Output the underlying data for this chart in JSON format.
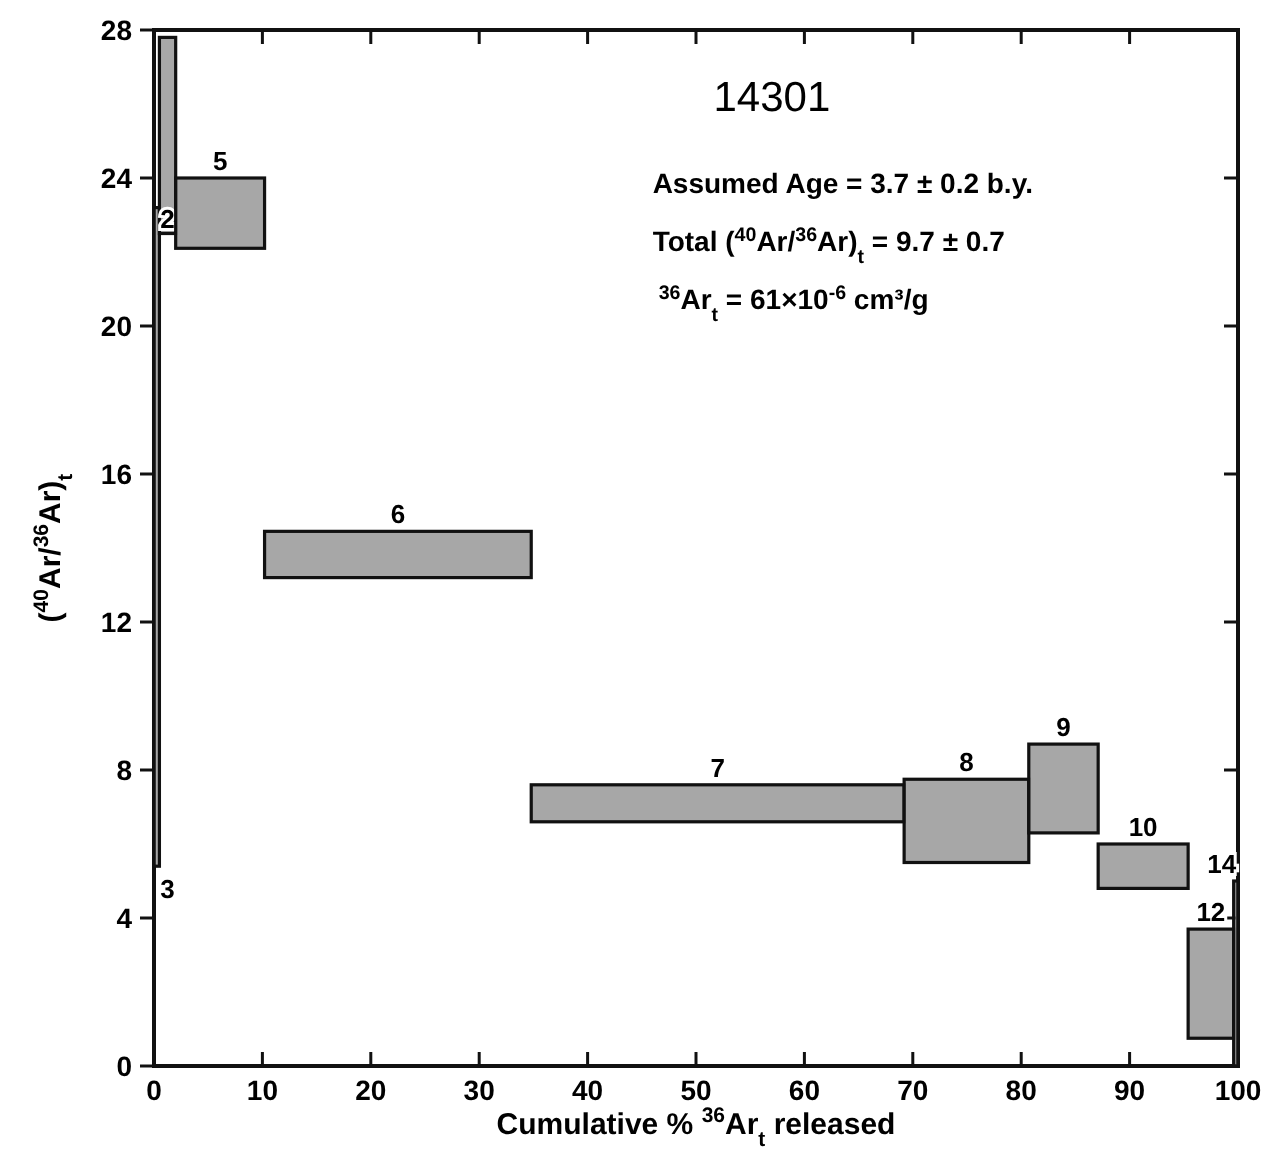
{
  "chart_data": {
    "type": "bar",
    "title": "14301",
    "xlabel": "Cumulative % $^{36}$Ar$_{t}$ released",
    "ylabel": "($^{40}$Ar/$^{36}$Ar)$_{t}$",
    "x": [
      0.25,
      1.25,
      6.1,
      22.5,
      52,
      74.95,
      83.9,
      91.25,
      97.5,
      99.8
    ],
    "series": [
      {
        "color": "#8a8a8a",
        "values": [
          17.8,
          5.3,
          1.9,
          1.25,
          1.0,
          2.25,
          2.4,
          1.2,
          2.95,
          5.0
        ],
        "base": [
          5.4,
          22.5,
          22.1,
          13.2,
          6.6,
          5.5,
          6.3,
          4.8,
          0.75,
          0
        ]
      }
    ],
    "xlim": [
      0,
      100
    ],
    "xticks": [
      0,
      10,
      20,
      30,
      40,
      50,
      60,
      70,
      80,
      90,
      100
    ],
    "ylim": [
      0,
      28
    ],
    "yticks": [
      0,
      4,
      8,
      12,
      16,
      20,
      24,
      28
    ],
    "grid": false,
    "annotations": [
      "Assumed Age = 3.7 ± 0.2 b.y.",
      "Total ($^{40}$Ar/$^{36}$Ar)$_{t}$ = 9.7 ± 0.7",
      "$^{36}$Ar$_{t}$ = 61×10$^{-6}$ cm³/g",
      "3",
      "2",
      "5",
      "6",
      "7",
      "8",
      "9",
      "10",
      "12",
      "14"
    ]
  }
}
